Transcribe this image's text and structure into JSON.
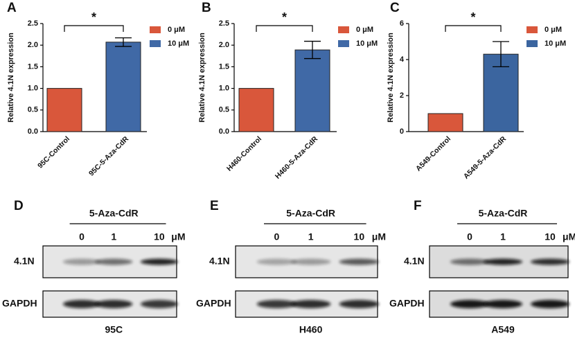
{
  "chart_data": [
    {
      "type": "bar",
      "panel": "A",
      "y_label": "Relative 4.1N expression",
      "annotation": "*",
      "categories": [
        "95C-Control",
        "95C-5-Aza-CdR"
      ],
      "series": [
        {
          "name": "0 μM",
          "color": "#d9573b",
          "values": [
            1,
            null
          ],
          "errors": [
            null,
            null
          ]
        },
        {
          "name": "10 μM",
          "color": "#4069a6",
          "values": [
            null,
            2.07
          ],
          "errors": [
            null,
            0.1
          ]
        }
      ],
      "ylim": [
        0,
        2.5
      ],
      "yticks": [
        {
          "value": 0,
          "label": "0.0"
        },
        0.5,
        {
          "value": 1,
          "label": "1.0"
        },
        1.5,
        {
          "value": 2,
          "label": "2.0"
        },
        2.5
      ]
    },
    {
      "type": "bar",
      "panel": "B",
      "y_label": "Relative 4.1N expression",
      "annotation": "*",
      "categories": [
        "H460-Control",
        "H460-5-Aza-CdR"
      ],
      "series": [
        {
          "name": "0 μM",
          "color": "#d9573b",
          "values": [
            1,
            null
          ],
          "errors": [
            null,
            null
          ]
        },
        {
          "name": "10 μM",
          "color": "#4069a6",
          "values": [
            null,
            1.89
          ],
          "errors": [
            null,
            0.2
          ]
        }
      ],
      "ylim": [
        0,
        2.5
      ],
      "yticks": [
        {
          "value": 0,
          "label": "0.0"
        },
        0.5,
        {
          "value": 1,
          "label": "1.0"
        },
        1.5,
        {
          "value": 2,
          "label": "2.0"
        },
        2.5
      ]
    },
    {
      "type": "bar",
      "panel": "C",
      "y_label": "Relative 4.1N expression",
      "annotation": "*",
      "categories": [
        "A549-Control",
        "A549-5-Aza-CdR"
      ],
      "series": [
        {
          "name": "0 μM",
          "color": "#d9573b",
          "values": [
            1,
            null
          ],
          "errors": [
            null,
            null
          ]
        },
        {
          "name": "10 μM",
          "color": "#3b659f",
          "values": [
            null,
            4.3
          ],
          "errors": [
            null,
            0.7
          ]
        }
      ],
      "ylim": [
        0,
        6
      ],
      "yticks": [
        0,
        2,
        4,
        6
      ]
    }
  ],
  "blots": [
    {
      "panel": "D",
      "treatment": "5-Aza-CdR",
      "doses": [
        0,
        1,
        10
      ],
      "unit": "μM",
      "rows": [
        "4.1N",
        "GAPDH"
      ],
      "cell_line": "95C"
    },
    {
      "panel": "E",
      "treatment": "5-Aza-CdR",
      "doses": [
        0,
        1,
        10
      ],
      "unit": "μM",
      "rows": [
        "4.1N",
        "GAPDH"
      ],
      "cell_line": "H460"
    },
    {
      "panel": "F",
      "treatment": "5-Aza-CdR",
      "doses": [
        0,
        1,
        10
      ],
      "unit": "μM",
      "rows": [
        "4.1N",
        "GAPDH"
      ],
      "cell_line": "A549"
    }
  ]
}
